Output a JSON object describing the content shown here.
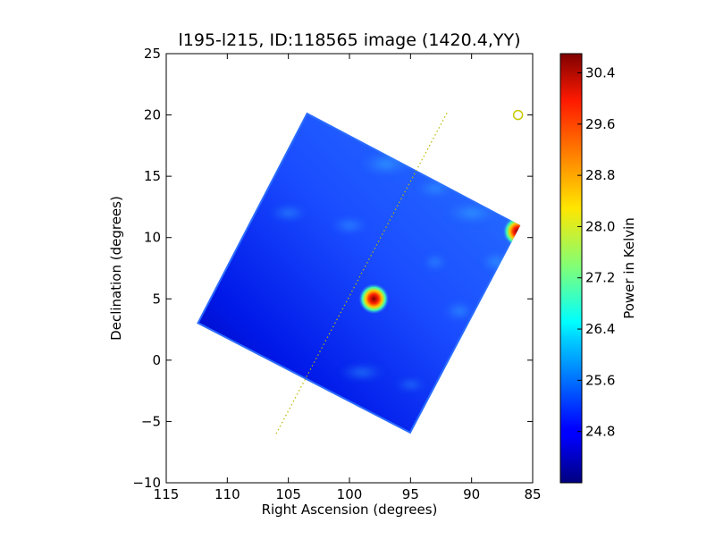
{
  "chart_data": {
    "type": "heatmap",
    "title": "l195-l215, ID:118565 image (1420.4,YY)",
    "xlabel": "Right Ascension (degrees)",
    "ylabel": "Declination (degrees)",
    "xlim": [
      115,
      85
    ],
    "ylim": [
      -10,
      25
    ],
    "x_ticks": [
      "115",
      "110",
      "105",
      "100",
      "95",
      "90",
      "85"
    ],
    "y_ticks": [
      "25",
      "20",
      "15",
      "10",
      "5",
      "0",
      "−5",
      "−10"
    ],
    "grid": false,
    "field_corners": [
      [
        103.5,
        20.2
      ],
      [
        86.0,
        11.0
      ],
      [
        95.0,
        -6.0
      ],
      [
        112.5,
        3.0
      ]
    ],
    "hot_spots": [
      {
        "ra": 98.0,
        "dec": 5.0,
        "value": 30.4
      },
      {
        "ra": 86.2,
        "dec": 10.5,
        "value": 29.8
      }
    ],
    "dotted_line": {
      "from": [
        106.0,
        -6.0
      ],
      "to": [
        92.0,
        20.2
      ],
      "color": "#b8b800"
    },
    "marker": {
      "ra": 86.2,
      "dec": 20.0,
      "color": "#c8c800"
    },
    "colorbar": {
      "label": "Power in Kelvin",
      "min": 24.0,
      "max": 30.7,
      "ticks": [
        "30.4",
        "29.6",
        "28.8",
        "28.0",
        "27.2",
        "26.4",
        "25.6",
        "24.8"
      ],
      "tick_values": [
        30.4,
        29.6,
        28.8,
        28.0,
        27.2,
        26.4,
        25.6,
        24.8
      ],
      "colormap": "jet"
    }
  }
}
